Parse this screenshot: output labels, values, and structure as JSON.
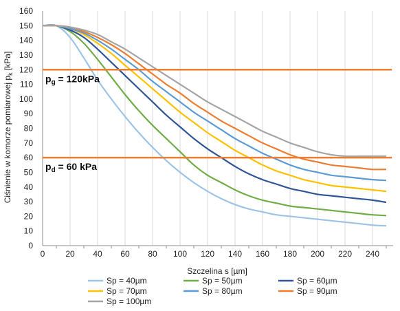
{
  "chart_data": {
    "type": "line",
    "ylabel_main": "Ciśnienie w komorze pomiarowej p",
    "ylabel_sub": "k",
    "ylabel_unit": " [kPa]",
    "xlabel": "Szczelina s [µm]",
    "xlim": [
      0,
      255
    ],
    "ylim": [
      0,
      160
    ],
    "x_ticks": [
      0,
      20,
      40,
      60,
      80,
      100,
      120,
      140,
      160,
      180,
      200,
      220,
      240
    ],
    "y_ticks": [
      0,
      10,
      20,
      30,
      40,
      50,
      60,
      70,
      80,
      90,
      100,
      110,
      120,
      130,
      140,
      150,
      160
    ],
    "grid": "vertical",
    "legend_position": "bottom",
    "reference_lines": [
      {
        "value": 120,
        "label_main": "p",
        "label_sub": "g",
        "label_rest": " = 120kPa",
        "color": "#ED7D31"
      },
      {
        "value": 60,
        "label_main": "p",
        "label_sub": "d",
        "label_rest": " = 60 kPa",
        "color": "#ED7D31"
      }
    ],
    "x": [
      0,
      10,
      20,
      30,
      40,
      50,
      60,
      70,
      80,
      90,
      100,
      110,
      120,
      130,
      140,
      150,
      160,
      170,
      180,
      190,
      200,
      210,
      220,
      230,
      240,
      250
    ],
    "series": [
      {
        "name": "Sp = 40µm",
        "color": "#9DC3E6",
        "values": [
          150,
          150,
          142,
          128,
          113,
          100,
          88,
          77,
          67,
          58,
          50,
          43,
          37,
          32,
          28,
          25,
          23,
          21,
          20,
          19,
          18,
          17,
          16,
          15,
          14,
          13.5
        ]
      },
      {
        "name": "Sp = 50µm",
        "color": "#70AD47",
        "values": [
          150,
          150,
          146,
          138,
          127,
          115,
          103,
          92,
          82,
          73,
          64,
          55,
          48,
          43,
          38,
          34,
          31,
          29,
          27,
          26,
          25,
          24,
          23,
          22,
          21,
          20.5
        ]
      },
      {
        "name": "Sp = 60µm",
        "color": "#2F5597",
        "values": [
          150,
          150,
          147,
          142,
          134,
          125,
          116,
          107,
          98,
          89,
          81,
          73,
          66,
          60,
          54,
          49,
          45,
          42,
          39,
          37,
          35,
          34,
          33,
          32,
          31,
          29.5
        ]
      },
      {
        "name": "Sp = 70µm",
        "color": "#FFC000",
        "values": [
          150,
          150,
          148,
          144,
          138,
          131,
          123,
          115,
          107,
          99,
          91,
          84,
          77,
          71,
          65,
          60,
          55,
          51,
          48,
          45,
          43,
          41,
          40,
          39,
          38,
          37
        ]
      },
      {
        "name": "Sp = 80µm",
        "color": "#5B9BD5",
        "values": [
          150,
          150,
          148,
          145,
          140,
          134,
          127,
          120,
          112,
          105,
          98,
          91,
          85,
          79,
          73,
          68,
          63,
          59,
          55,
          52,
          50,
          48,
          47,
          46,
          45,
          44.5
        ]
      },
      {
        "name": "Sp = 90µm",
        "color": "#ED7D31",
        "values": [
          150,
          150,
          149,
          146,
          142,
          137,
          131,
          124,
          117,
          110,
          104,
          97,
          91,
          85,
          80,
          75,
          70,
          66,
          62,
          59,
          57,
          55,
          54,
          53,
          52,
          52
        ]
      },
      {
        "name": "Sp = 100µm",
        "color": "#A5A5A5",
        "values": [
          150,
          150,
          149,
          147,
          144,
          139,
          134,
          128,
          122,
          116,
          110,
          104,
          98,
          93,
          88,
          83,
          78,
          74,
          70,
          67,
          64,
          62,
          61,
          61,
          61,
          61
        ]
      }
    ]
  }
}
